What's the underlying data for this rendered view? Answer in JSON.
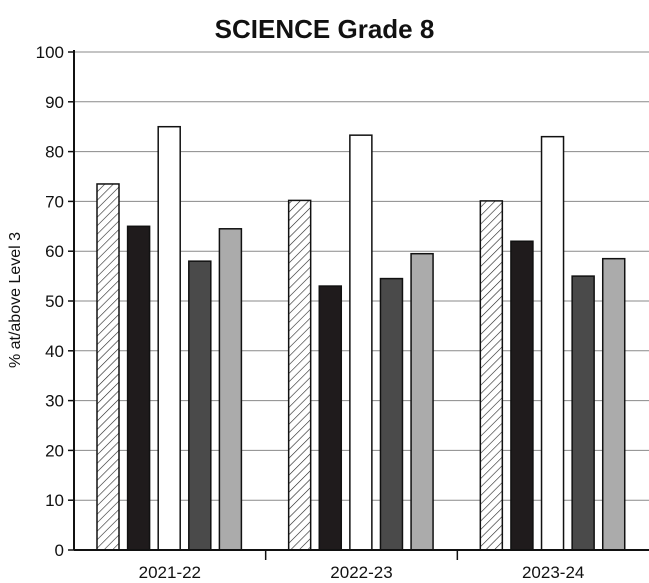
{
  "chart_data": {
    "type": "bar",
    "title": "SCIENCE Grade 8",
    "xlabel": "",
    "ylabel": "% at/above Level 3",
    "ylim": [
      0,
      100
    ],
    "yticks": [
      0,
      10,
      20,
      30,
      40,
      50,
      60,
      70,
      80,
      90,
      100
    ],
    "grid": true,
    "categories": [
      "2021-22",
      "2022-23",
      "2023-24"
    ],
    "series": [
      {
        "values": [
          73.5,
          70.2,
          70.1
        ],
        "pattern": "hatch",
        "color": "#ffffff"
      },
      {
        "values": [
          65.0,
          53.0,
          62.0
        ],
        "color": "#1f1b1c"
      },
      {
        "values": [
          85.0,
          83.3,
          83.0
        ],
        "color": "#ffffff"
      },
      {
        "values": [
          58.0,
          54.5,
          55.0
        ],
        "color": "#4a4a4a"
      },
      {
        "values": [
          64.5,
          59.5,
          58.5
        ],
        "color": "#ababab"
      }
    ]
  }
}
